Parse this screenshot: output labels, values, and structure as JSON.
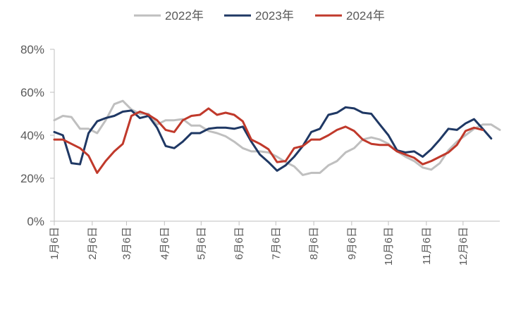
{
  "chart_data": {
    "type": "line",
    "title": "",
    "xlabel": "",
    "ylabel": "",
    "ylim": [
      0,
      80
    ],
    "yticks": [
      "0%",
      "20%",
      "40%",
      "60%",
      "80%"
    ],
    "grid": false,
    "legend_position": "top-center",
    "x_tick_labels": [
      "1月6日",
      "2月6日",
      "3月6日",
      "4月6日",
      "5月6日",
      "6月6日",
      "7月6日",
      "8月6日",
      "9月6日",
      "10月6日",
      "11月6日",
      "12月6日"
    ],
    "x_tick_positions": [
      0,
      4.43,
      8.43,
      12.86,
      17.14,
      21.57,
      25.86,
      30.29,
      34.71,
      39,
      43.43,
      47.71
    ],
    "series": [
      {
        "name": "2022年",
        "color": "#bfbfbf",
        "values": [
          47,
          49,
          48.5,
          43,
          43,
          41,
          47,
          54.5,
          56,
          52,
          50,
          50,
          45,
          47,
          47,
          47.5,
          44.5,
          44.5,
          42,
          41,
          39.5,
          37,
          34,
          32.5,
          32.5,
          32,
          30,
          27.5,
          25.5,
          21.5,
          22.5,
          22.5,
          26,
          28,
          32,
          34,
          38,
          39,
          38,
          36,
          32.5,
          30,
          28,
          25,
          24,
          27,
          33,
          37,
          40,
          43,
          45,
          45,
          42.5
        ]
      },
      {
        "name": "2023年",
        "color": "#1f3864",
        "values": [
          41.5,
          40,
          27,
          26.5,
          41,
          46.5,
          48,
          49,
          51,
          51.5,
          48,
          49,
          43.5,
          35,
          34,
          37,
          41,
          41,
          43,
          43.5,
          43.5,
          43,
          44,
          37,
          31,
          27.5,
          23.5,
          26,
          30,
          35,
          41.5,
          43,
          49.5,
          50.5,
          53,
          52.5,
          50.5,
          50,
          45,
          40,
          33,
          32,
          32.5,
          30,
          33.5,
          38,
          43,
          42.5,
          45.5,
          47.5,
          43,
          38.5
        ]
      },
      {
        "name": "2024年",
        "color": "#c0392b",
        "values": [
          38,
          38,
          36,
          34,
          30.5,
          22.5,
          28,
          32.5,
          36,
          49,
          51,
          49.5,
          47,
          42.5,
          41.5,
          47,
          49,
          49.5,
          52.5,
          49.5,
          50.5,
          49.5,
          46.5,
          38,
          36,
          33.5,
          27.5,
          28,
          34,
          35,
          38,
          38,
          40,
          42.5,
          44,
          42,
          38,
          36,
          35.5,
          35.5,
          32.5,
          31,
          29.5,
          26.5,
          28,
          30,
          32,
          35.5,
          42,
          43.5,
          42.5
        ]
      }
    ]
  }
}
